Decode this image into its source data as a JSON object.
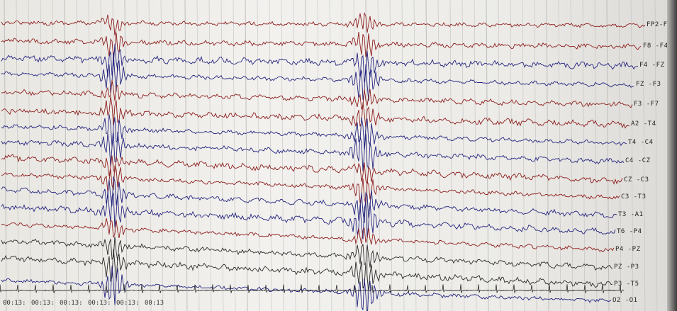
{
  "colors": {
    "red": "#8c1d1d",
    "blue": "#23237f",
    "black": "#2a2a2a",
    "grid": "#b9b9b9"
  },
  "channels": [
    {
      "label": "FP2-F8",
      "color": "red"
    },
    {
      "label": "F8 -F4",
      "color": "red"
    },
    {
      "label": "F4 -FZ",
      "color": "blue"
    },
    {
      "label": "FZ -F3",
      "color": "blue"
    },
    {
      "label": "F3 -F7",
      "color": "red"
    },
    {
      "label": "A2 -T4",
      "color": "red"
    },
    {
      "label": "T4 -C4",
      "color": "blue"
    },
    {
      "label": "C4 -CZ",
      "color": "blue"
    },
    {
      "label": "CZ -C3",
      "color": "red"
    },
    {
      "label": "C3 -T3",
      "color": "red"
    },
    {
      "label": "T3 -A1",
      "color": "blue"
    },
    {
      "label": "T6 -P4",
      "color": "blue"
    },
    {
      "label": "P4 -PZ",
      "color": "red"
    },
    {
      "label": "PZ -P3",
      "color": "black"
    },
    {
      "label": "P3 -T5",
      "color": "black"
    },
    {
      "label": "O2 -O1",
      "color": "blue"
    }
  ],
  "timestamps": [
    "00:13:",
    "00:13:",
    "00:13:",
    "00:13:",
    "00:13:",
    "00:13"
  ]
}
